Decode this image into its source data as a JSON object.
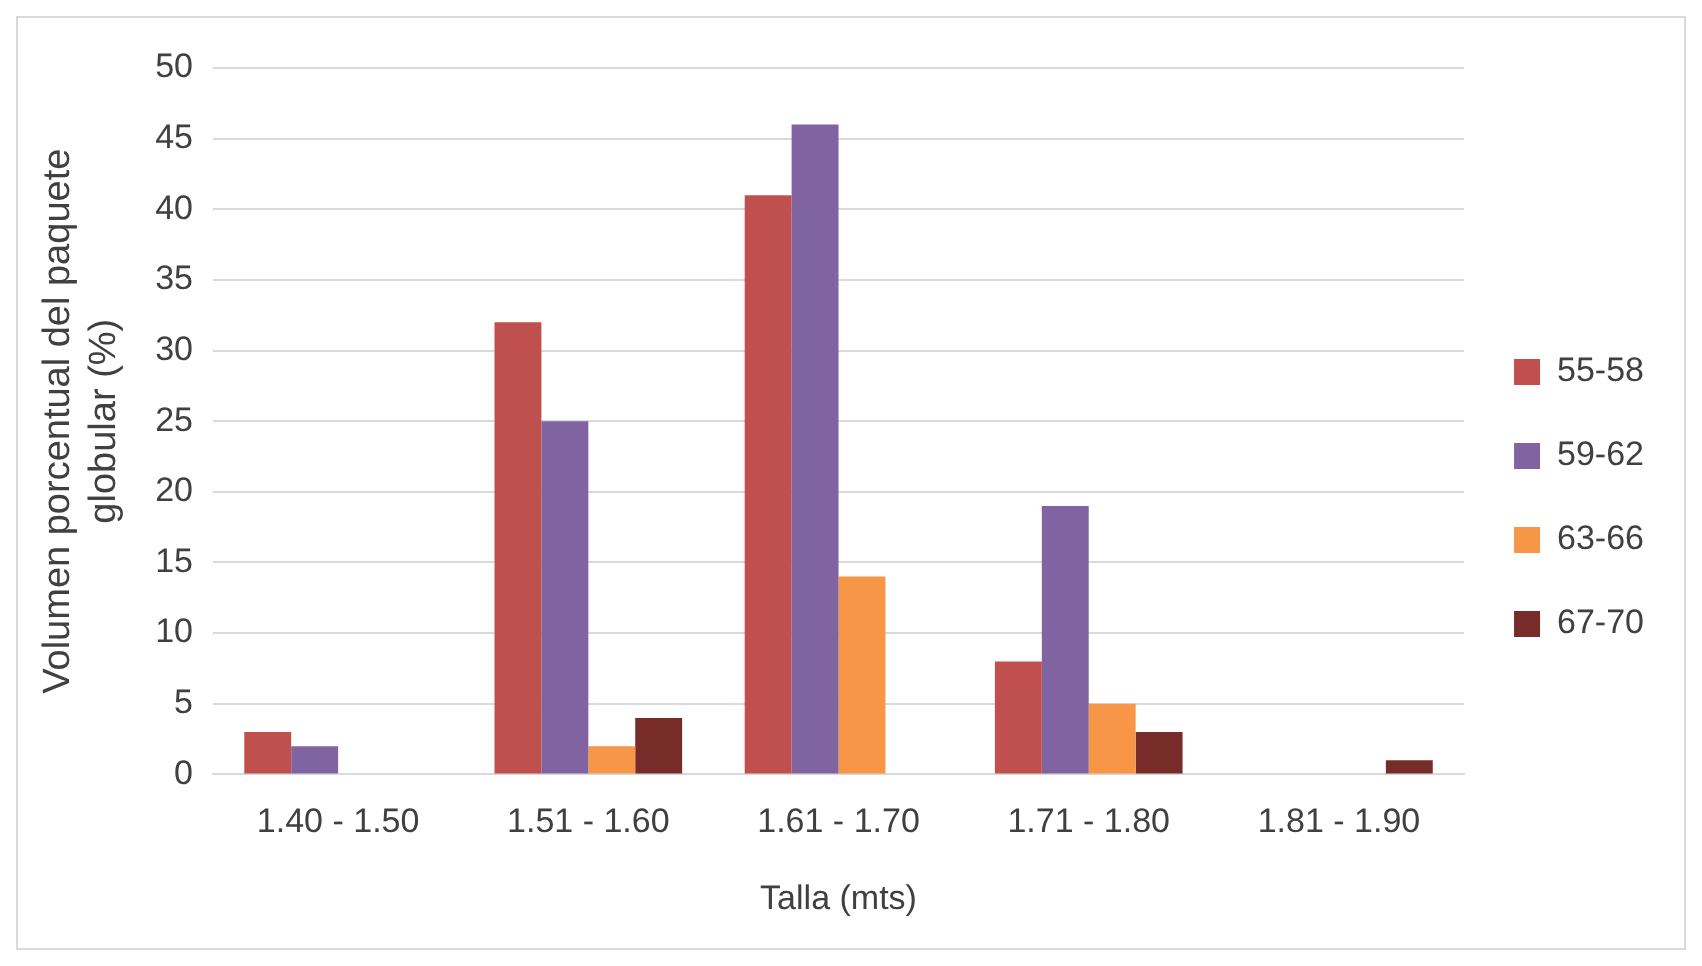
{
  "chart_data": {
    "type": "bar",
    "xlabel": "Talla (mts)",
    "ylabel": "Volumen porcentual del paquete globular (%)",
    "categories": [
      "1.40 - 1.50",
      "1.51 - 1.60",
      "1.61 - 1.70",
      "1.71 - 1.80",
      "1.81 - 1.90"
    ],
    "series": [
      {
        "name": "55-58",
        "color": "#c0504d",
        "values": [
          3,
          32,
          41,
          8,
          0
        ]
      },
      {
        "name": "59-62",
        "color": "#8064a2",
        "values": [
          2,
          25,
          46,
          19,
          0
        ]
      },
      {
        "name": "63-66",
        "color": "#f79646",
        "values": [
          0,
          2,
          14,
          5,
          0
        ]
      },
      {
        "name": "67-70",
        "color": "#772c2a",
        "values": [
          0,
          4,
          0,
          3,
          1
        ]
      }
    ],
    "ylim": [
      0,
      50
    ],
    "yticks": [
      0,
      5,
      10,
      15,
      20,
      25,
      30,
      35,
      40,
      45,
      50
    ],
    "grid": "y",
    "legend": "right"
  }
}
